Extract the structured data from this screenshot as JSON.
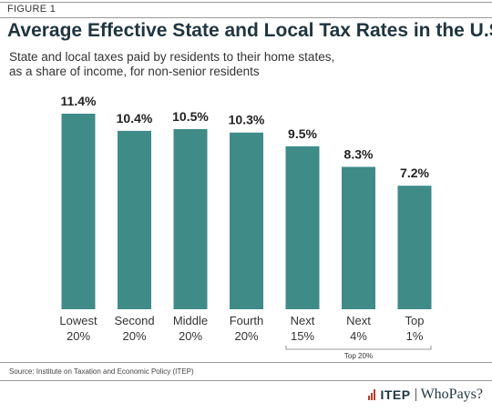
{
  "header": {
    "figure_label": "FIGURE 1",
    "title": "Average Effective State and Local Tax Rates in the U.S.",
    "subtitle_lines": [
      "State and local taxes paid by residents to their home states,",
      "as a share of income, for non-senior residents"
    ]
  },
  "chart_data": {
    "type": "bar",
    "title": "Average Effective State and Local Tax Rates in the U.S.",
    "subtitle": "State and local taxes paid by residents to their home states, as a share of income, for non-senior residents",
    "categories": [
      [
        "Lowest",
        "20%"
      ],
      [
        "Second",
        "20%"
      ],
      [
        "Middle",
        "20%"
      ],
      [
        "Fourth",
        "20%"
      ],
      [
        "Next",
        "15%"
      ],
      [
        "Next",
        "4%"
      ],
      [
        "Top",
        "1%"
      ]
    ],
    "values": [
      11.4,
      10.4,
      10.5,
      10.3,
      9.5,
      8.3,
      7.2
    ],
    "data_labels": [
      "11.4%",
      "10.4%",
      "10.5%",
      "10.3%",
      "9.5%",
      "8.3%",
      "7.2%"
    ],
    "xlabel": "",
    "ylabel": "",
    "ylim": [
      0,
      11.4
    ],
    "grid": false,
    "color": "#3f8b88",
    "bracket": {
      "label": "Top 20%",
      "categories_from": 4,
      "categories_to": 6
    }
  },
  "footer": {
    "source": "Source: Institute on Taxation and Economic Policy (ITEP)",
    "logo_itep": "ITEP",
    "logo_whopays": "WhoPays?"
  },
  "colors": {
    "bar": "#3f8b88",
    "title": "#1f3540",
    "logo_accent": "#c0392b"
  }
}
